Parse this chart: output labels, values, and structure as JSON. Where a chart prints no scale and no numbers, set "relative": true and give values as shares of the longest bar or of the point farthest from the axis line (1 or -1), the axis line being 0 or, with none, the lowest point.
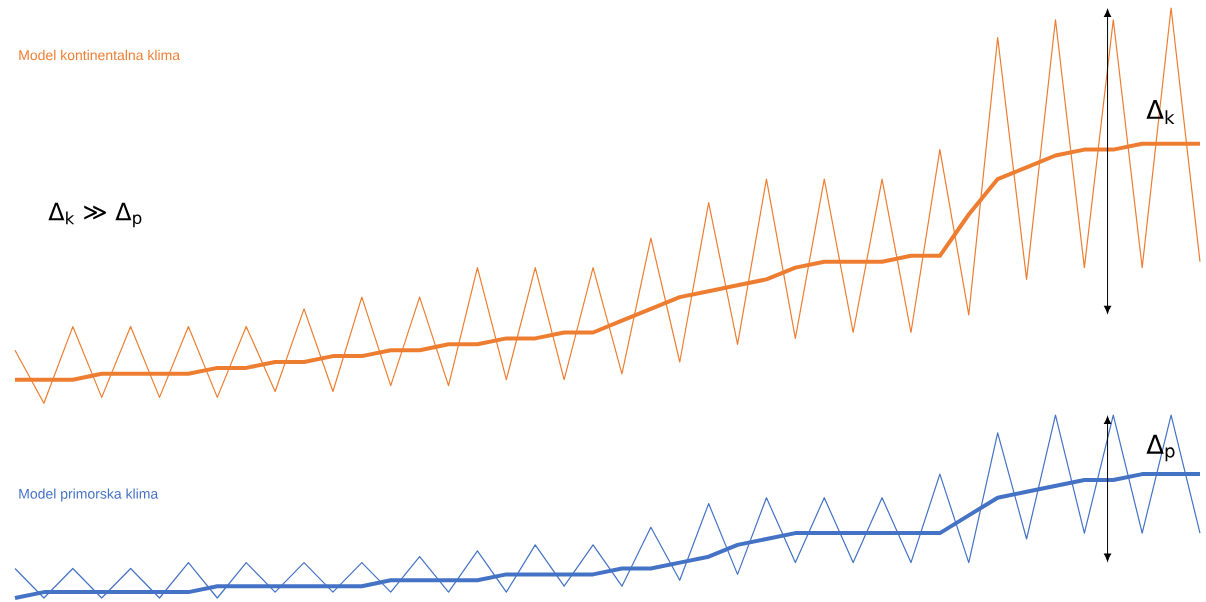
{
  "chart_data": {
    "type": "line",
    "relative": true,
    "categories": [
      null,
      null,
      null,
      null,
      null,
      null,
      null,
      null,
      null,
      null,
      null,
      null,
      null,
      null,
      null,
      null,
      null,
      null,
      null,
      null,
      null,
      null,
      null,
      null,
      null,
      null,
      null,
      null,
      null,
      null,
      null,
      null,
      null,
      null,
      null,
      null,
      null,
      null,
      null,
      null,
      null,
      null
    ],
    "series": [
      {
        "color": "#ed7d31",
        "values": [
          0.42,
          0.33,
          0.46,
          0.34,
          0.46,
          0.34,
          0.46,
          0.34,
          0.46,
          0.35,
          0.49,
          0.35,
          0.51,
          0.36,
          0.51,
          0.36,
          0.56,
          0.37,
          0.56,
          0.37,
          0.56,
          0.38,
          0.61,
          0.4,
          0.67,
          0.43,
          0.71,
          0.44,
          0.71,
          0.45,
          0.71,
          0.45,
          0.76,
          0.48,
          0.95,
          0.54,
          0.98,
          0.56,
          0.98,
          0.56,
          1.0,
          0.57
        ]
      },
      {
        "name": "Model kontinentalna klima",
        "color": "#ed7d31",
        "values": [
          0.37,
          0.37,
          0.37,
          0.38,
          0.38,
          0.38,
          0.38,
          0.39,
          0.39,
          0.4,
          0.4,
          0.41,
          0.41,
          0.42,
          0.42,
          0.43,
          0.43,
          0.44,
          0.44,
          0.45,
          0.45,
          0.47,
          0.49,
          0.51,
          0.52,
          0.53,
          0.54,
          0.56,
          0.57,
          0.57,
          0.57,
          0.58,
          0.58,
          0.65,
          0.71,
          0.73,
          0.75,
          0.76,
          0.76,
          0.77,
          0.77,
          0.77
        ]
      },
      {
        "color": "#4472c4",
        "values": [
          0.05,
          0,
          0.05,
          0,
          0.05,
          0,
          0.06,
          0,
          0.06,
          0.01,
          0.06,
          0.01,
          0.06,
          0.01,
          0.07,
          0.01,
          0.08,
          0.01,
          0.09,
          0.02,
          0.09,
          0.02,
          0.12,
          0.03,
          0.16,
          0.04,
          0.17,
          0.06,
          0.17,
          0.06,
          0.17,
          0.06,
          0.21,
          0.06,
          0.28,
          0.1,
          0.31,
          0.11,
          0.31,
          0.11,
          0.31,
          0.11
        ]
      },
      {
        "name": "Model primorska klima",
        "color": "#4472c4",
        "values": [
          0,
          0.01,
          0.01,
          0.01,
          0.01,
          0.01,
          0.01,
          0.02,
          0.02,
          0.02,
          0.02,
          0.02,
          0.02,
          0.03,
          0.03,
          0.03,
          0.03,
          0.04,
          0.04,
          0.04,
          0.04,
          0.05,
          0.05,
          0.06,
          0.07,
          0.09,
          0.1,
          0.11,
          0.11,
          0.11,
          0.11,
          0.11,
          0.11,
          0.14,
          0.17,
          0.18,
          0.19,
          0.2,
          0.2,
          0.21,
          0.21,
          0.21
        ]
      }
    ],
    "annotations": [
      "Δ$_{k}$ ≫ Δ$_{p}$",
      "Δ$_{k}$",
      "Δ$_{p}$"
    ]
  }
}
